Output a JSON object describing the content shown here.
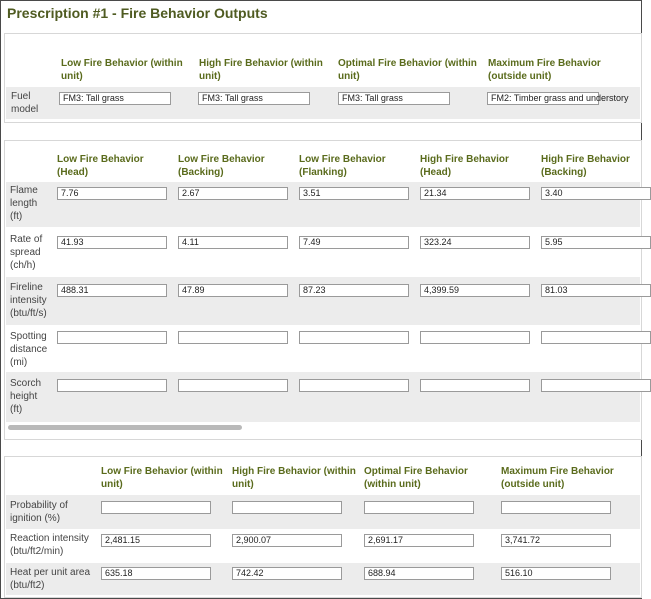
{
  "title": "Prescription #1 - Fire Behavior Outputs",
  "fuel_section": {
    "headers": [
      "Low Fire Behavior (within unit)",
      "High Fire Behavior (within unit)",
      "Optimal Fire Behavior (within unit)",
      "Maximum Fire Behavior (outside unit)"
    ],
    "row_label": "Fuel model",
    "values": [
      "FM3: Tall grass",
      "FM3: Tall grass",
      "FM3: Tall grass",
      "FM2: Timber grass and understory"
    ]
  },
  "behavior_section": {
    "headers": [
      "Low Fire Behavior (Head)",
      "Low Fire Behavior (Backing)",
      "Low Fire Behavior (Flanking)",
      "High Fire Behavior (Head)",
      "High Fire Behavior (Backing)"
    ],
    "rows": [
      {
        "label": "Flame length (ft)",
        "values": [
          "7.76",
          "2.67",
          "3.51",
          "21.34",
          "3.40"
        ]
      },
      {
        "label": "Rate of spread (ch/h)",
        "values": [
          "41.93",
          "4.11",
          "7.49",
          "323.24",
          "5.95"
        ]
      },
      {
        "label": "Fireline intensity (btu/ft/s)",
        "values": [
          "488.31",
          "47.89",
          "87.23",
          "4,399.59",
          "81.03"
        ]
      },
      {
        "label": "Spotting distance (mi)",
        "values": [
          "",
          "",
          "",
          "",
          ""
        ]
      },
      {
        "label": "Scorch height (ft)",
        "values": [
          "",
          "",
          "",
          "",
          ""
        ]
      }
    ]
  },
  "ignition_section": {
    "headers": [
      "Low Fire Behavior (within unit)",
      "High Fire Behavior (within unit)",
      "Optimal Fire Behavior (within unit)",
      "Maximum Fire Behavior (outside unit)"
    ],
    "rows": [
      {
        "label": "Probability of ignition (%)",
        "values": [
          "",
          "",
          "",
          ""
        ]
      },
      {
        "label": "Reaction intensity (btu/ft2/min)",
        "values": [
          "2,481.15",
          "2,900.07",
          "2,691.17",
          "3,741.72"
        ]
      },
      {
        "label": "Heat per unit area (btu/ft2)",
        "values": [
          "635.18",
          "742.42",
          "688.94",
          "516.10"
        ]
      }
    ]
  }
}
